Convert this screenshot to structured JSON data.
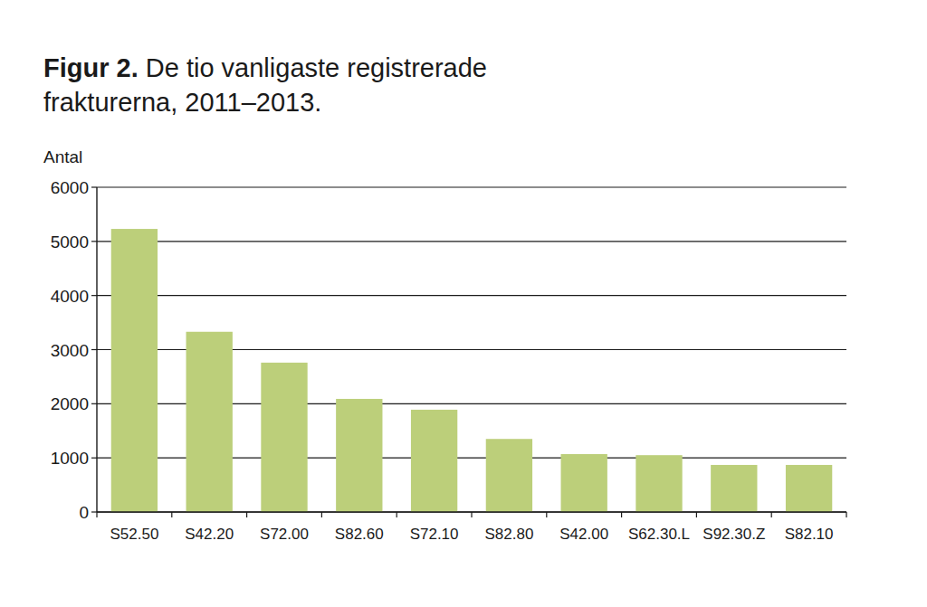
{
  "chart_data": {
    "type": "bar",
    "title": "Figur 2. De tio vanligaste registrerade frakturerna, 2011–2013.",
    "y_label": "Antal",
    "categories": [
      "S52.50",
      "S42.20",
      "S72.00",
      "S82.60",
      "S72.10",
      "S82.80",
      "S42.00",
      "S62.30.L",
      "S92.30.Z",
      "S82.10"
    ],
    "values": [
      5230,
      3330,
      2760,
      2090,
      1890,
      1350,
      1070,
      1050,
      870,
      870
    ],
    "color": "#bccf7a",
    "ylim": [
      0,
      6000
    ],
    "yticks": [
      0,
      1000,
      2000,
      3000,
      4000,
      5000,
      6000
    ],
    "grid": true
  }
}
